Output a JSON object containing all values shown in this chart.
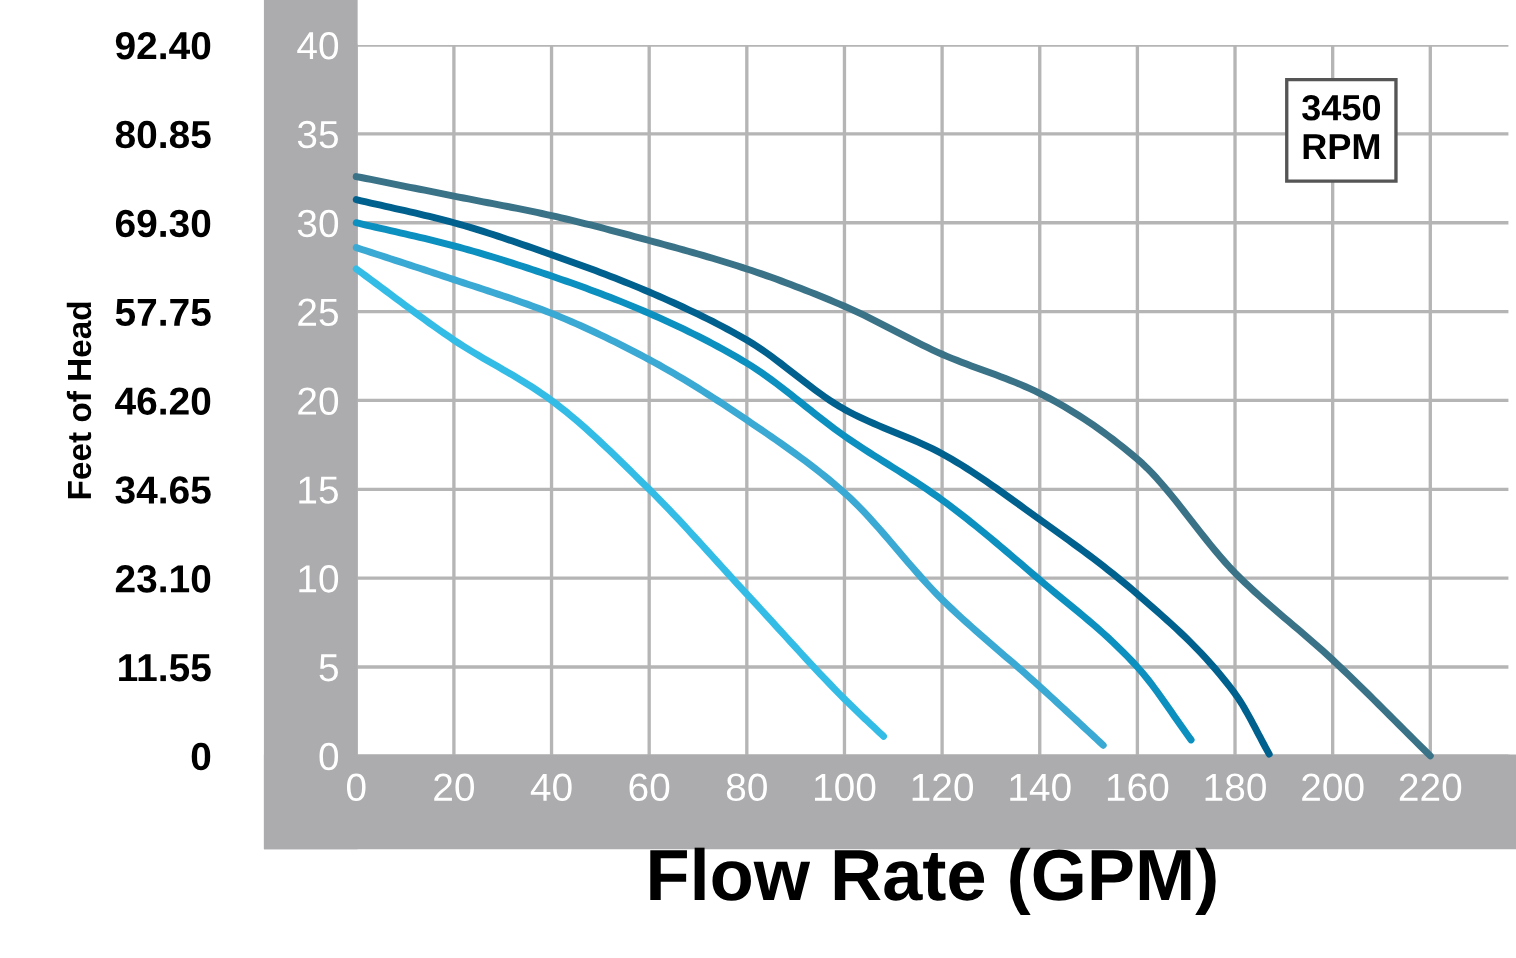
{
  "chart_data": {
    "type": "line",
    "xlabel": "Flow Rate (GPM)",
    "y2label": "Feet of Head",
    "annotations": [
      "3450\nRPM"
    ],
    "xlim": [
      0,
      236
    ],
    "xticks": [
      0,
      20,
      40,
      60,
      80,
      100,
      120,
      140,
      160,
      180,
      200,
      220
    ],
    "ylim": [
      0,
      40
    ],
    "yticks": [
      0,
      5,
      10,
      15,
      20,
      25,
      30,
      35,
      40
    ],
    "y2lim": [
      0,
      92.4
    ],
    "y2ticks": [
      {
        "value": 0,
        "label": "0"
      },
      {
        "value": 11.55,
        "label": "11.55"
      },
      {
        "value": 23.1,
        "label": "23.10"
      },
      {
        "value": 34.65,
        "label": "34.65"
      },
      {
        "value": 46.2,
        "label": "46.20"
      },
      {
        "value": 57.75,
        "label": "57.75"
      },
      {
        "value": 69.3,
        "label": "69.30"
      },
      {
        "value": 80.85,
        "label": "80.85"
      },
      {
        "value": 92.4,
        "label": "92.40"
      }
    ],
    "grid": true,
    "marker": "none",
    "line_style": "solid",
    "series": [
      {
        "color": "#3a7388",
        "x": [
          0,
          20,
          40,
          60,
          80,
          100,
          120,
          140,
          160,
          180,
          200,
          220
        ],
        "values": [
          32.6,
          31.5,
          30.4,
          29.0,
          27.4,
          25.3,
          22.6,
          20.4,
          16.7,
          10.3,
          5.4,
          0
        ]
      },
      {
        "color": "#00618e",
        "x": [
          0,
          20,
          40,
          60,
          80,
          100,
          120,
          140,
          160,
          180,
          187
        ],
        "values": [
          31.3,
          30.0,
          28.2,
          26.1,
          23.4,
          19.5,
          17.0,
          13.3,
          9.1,
          3.5,
          0.1
        ]
      },
      {
        "color": "#0b90c0",
        "x": [
          0,
          20,
          40,
          60,
          80,
          100,
          120,
          140,
          160,
          171
        ],
        "values": [
          30.0,
          28.7,
          27.0,
          24.9,
          22.1,
          18.0,
          14.4,
          9.9,
          5.0,
          0.9
        ]
      },
      {
        "color": "#3aa9d3",
        "x": [
          0,
          20,
          40,
          60,
          80,
          100,
          120,
          140,
          153
        ],
        "values": [
          28.6,
          26.8,
          24.9,
          22.3,
          18.9,
          14.8,
          8.8,
          3.9,
          0.6
        ]
      },
      {
        "color": "#33bde6",
        "x": [
          0,
          20,
          40,
          60,
          80,
          100,
          108
        ],
        "values": [
          27.4,
          23.4,
          20.0,
          15.0,
          9.1,
          3.2,
          1.1
        ]
      }
    ]
  }
}
